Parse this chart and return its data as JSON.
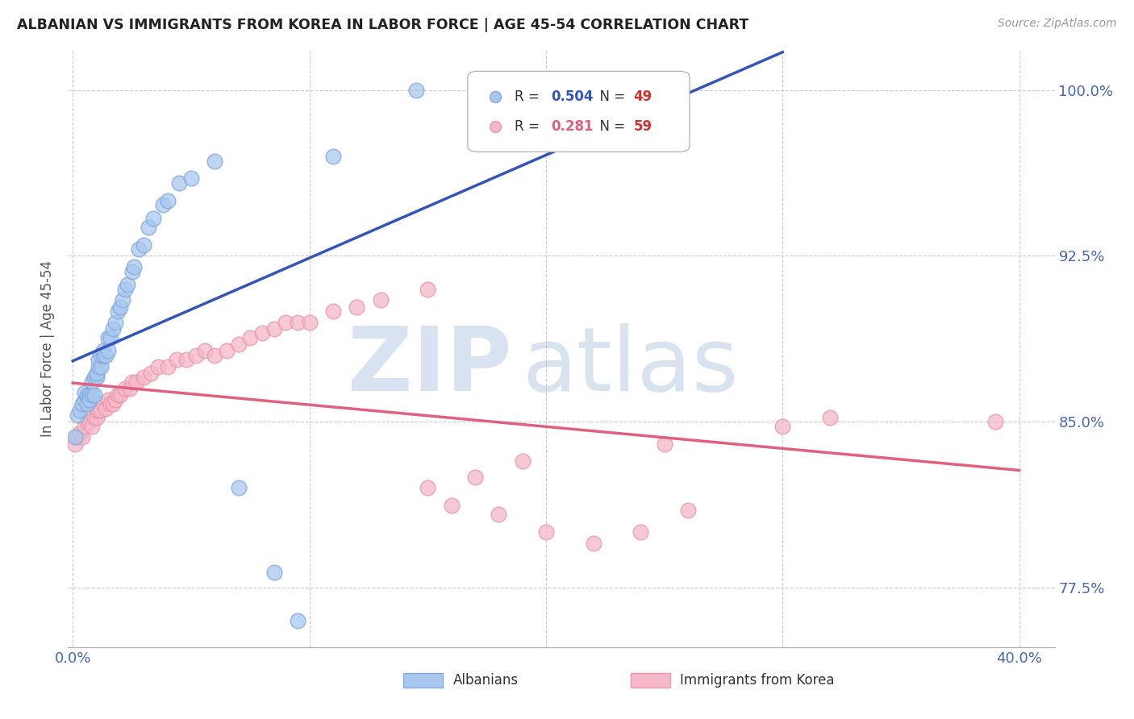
{
  "title": "ALBANIAN VS IMMIGRANTS FROM KOREA IN LABOR FORCE | AGE 45-54 CORRELATION CHART",
  "source": "Source: ZipAtlas.com",
  "ylabel": "In Labor Force | Age 45-54",
  "x_min": -0.002,
  "x_max": 0.415,
  "y_min": 0.748,
  "y_max": 1.018,
  "y_ticks": [
    0.775,
    0.85,
    0.925,
    1.0
  ],
  "y_tick_labels": [
    "77.5%",
    "85.0%",
    "92.5%",
    "100.0%"
  ],
  "x_tick_positions": [
    0.0,
    0.1,
    0.2,
    0.3,
    0.4
  ],
  "x_tick_labels": [
    "0.0%",
    "",
    "",
    "",
    "40.0%"
  ],
  "albanian_R": "0.504",
  "albanian_N": "49",
  "korea_R": "0.281",
  "korea_N": "59",
  "albanian_color": "#A8C8F0",
  "korea_color": "#F5B8C8",
  "albanian_edge_color": "#85AADC",
  "korea_edge_color": "#E89AAC",
  "albanian_line_color": "#3355BB",
  "korea_line_color": "#E06080",
  "background_color": "#FFFFFF",
  "grid_color": "#CCCCCC",
  "watermark": "ZIPatlas",
  "watermark_color_zip": "#C0D0E8",
  "watermark_color_atlas": "#A0B8D8",
  "title_color": "#222222",
  "axis_label_color": "#555555",
  "tick_label_color": "#4466BB",
  "legend_R_color_alb": "#3355BB",
  "legend_R_color_kor": "#E06080",
  "legend_N_color": "#CC3333",
  "albanian_x": [
    0.001,
    0.002,
    0.003,
    0.004,
    0.005,
    0.005,
    0.006,
    0.006,
    0.007,
    0.007,
    0.008,
    0.008,
    0.009,
    0.009,
    0.01,
    0.01,
    0.011,
    0.011,
    0.012,
    0.012,
    0.013,
    0.013,
    0.014,
    0.015,
    0.015,
    0.016,
    0.017,
    0.018,
    0.019,
    0.02,
    0.021,
    0.022,
    0.023,
    0.025,
    0.026,
    0.028,
    0.03,
    0.032,
    0.034,
    0.038,
    0.04,
    0.045,
    0.05,
    0.06,
    0.07,
    0.085,
    0.095,
    0.11,
    0.145
  ],
  "albanian_y": [
    0.843,
    0.853,
    0.855,
    0.858,
    0.86,
    0.863,
    0.862,
    0.858,
    0.862,
    0.86,
    0.862,
    0.868,
    0.87,
    0.862,
    0.87,
    0.872,
    0.875,
    0.878,
    0.875,
    0.88,
    0.88,
    0.882,
    0.88,
    0.888,
    0.882,
    0.888,
    0.892,
    0.895,
    0.9,
    0.902,
    0.905,
    0.91,
    0.912,
    0.918,
    0.92,
    0.928,
    0.93,
    0.938,
    0.942,
    0.948,
    0.95,
    0.958,
    0.96,
    0.968,
    0.82,
    0.782,
    0.76,
    0.97,
    1.0
  ],
  "korea_x": [
    0.001,
    0.002,
    0.003,
    0.004,
    0.005,
    0.006,
    0.007,
    0.008,
    0.009,
    0.01,
    0.01,
    0.011,
    0.012,
    0.013,
    0.014,
    0.015,
    0.016,
    0.017,
    0.018,
    0.019,
    0.02,
    0.022,
    0.024,
    0.025,
    0.027,
    0.03,
    0.033,
    0.036,
    0.04,
    0.044,
    0.048,
    0.052,
    0.056,
    0.06,
    0.065,
    0.07,
    0.075,
    0.08,
    0.085,
    0.09,
    0.095,
    0.1,
    0.11,
    0.12,
    0.13,
    0.15,
    0.16,
    0.18,
    0.2,
    0.22,
    0.24,
    0.26,
    0.15,
    0.17,
    0.19,
    0.25,
    0.3,
    0.32,
    0.39
  ],
  "korea_y": [
    0.84,
    0.843,
    0.845,
    0.843,
    0.848,
    0.85,
    0.85,
    0.848,
    0.852,
    0.852,
    0.855,
    0.855,
    0.855,
    0.858,
    0.856,
    0.86,
    0.858,
    0.858,
    0.86,
    0.862,
    0.862,
    0.865,
    0.865,
    0.868,
    0.868,
    0.87,
    0.872,
    0.875,
    0.875,
    0.878,
    0.878,
    0.88,
    0.882,
    0.88,
    0.882,
    0.885,
    0.888,
    0.89,
    0.892,
    0.895,
    0.895,
    0.895,
    0.9,
    0.902,
    0.905,
    0.91,
    0.812,
    0.808,
    0.8,
    0.795,
    0.8,
    0.81,
    0.82,
    0.825,
    0.832,
    0.84,
    0.848,
    0.852,
    0.85
  ]
}
